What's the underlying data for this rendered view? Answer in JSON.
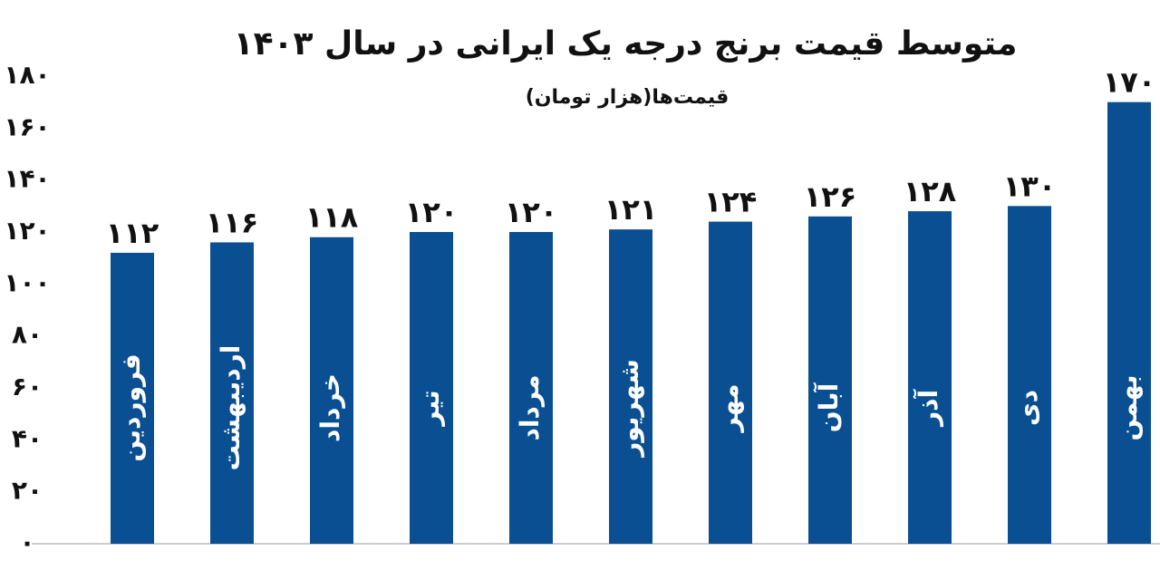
{
  "chart_data": {
    "type": "bar",
    "title": "متوسط قیمت برنج درجه یک ایرانی در سال ۱۴۰۳",
    "subtitle": "قیمت‌ها(هزار تومان)",
    "categories": [
      "فروردین",
      "اردیبهشت",
      "خرداد",
      "تیر",
      "مرداد",
      "شهریور",
      "مهر",
      "آبان",
      "آذر",
      "دی",
      "بهمن"
    ],
    "values": [
      112,
      116,
      118,
      120,
      120,
      121,
      124,
      126,
      128,
      130,
      170
    ],
    "value_labels": [
      "۱۱۲",
      "۱۱۶",
      "۱۱۸",
      "۱۲۰",
      "۱۲۰",
      "۱۲۱",
      "۱۲۴",
      "۱۲۶",
      "۱۲۸",
      "۱۳۰",
      "۱۷۰"
    ],
    "color": "#0b4f93",
    "ylim": [
      0,
      180
    ],
    "yticks": [
      {
        "value": 0,
        "label": "۰"
      },
      {
        "value": 20,
        "label": "۲۰"
      },
      {
        "value": 40,
        "label": "۴۰"
      },
      {
        "value": 60,
        "label": "۶۰"
      },
      {
        "value": 80,
        "label": "۸۰"
      },
      {
        "value": 100,
        "label": "۱۰۰"
      },
      {
        "value": 120,
        "label": "۱۲۰"
      },
      {
        "value": 140,
        "label": "۱۴۰"
      },
      {
        "value": 160,
        "label": "۱۶۰"
      },
      {
        "value": 180,
        "label": "۱۸۰"
      }
    ],
    "grid": false
  }
}
